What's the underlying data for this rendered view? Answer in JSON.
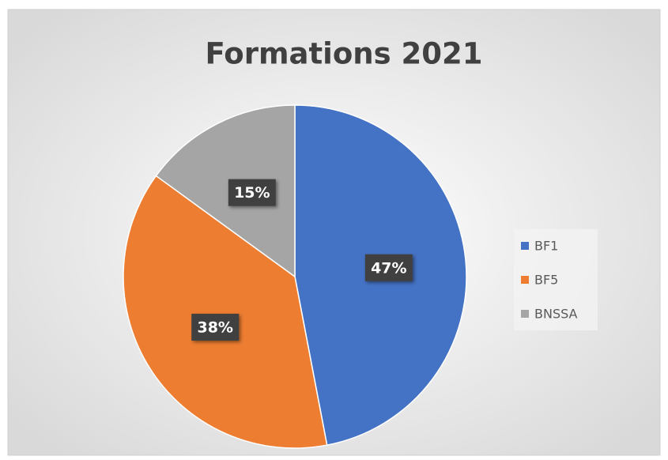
{
  "chart_data": {
    "type": "pie",
    "title": "Formations 2021",
    "categories": [
      "BF1",
      "BF5",
      "BNSSA"
    ],
    "values": [
      47,
      38,
      15
    ],
    "value_labels": [
      "47%",
      "38%",
      "15%"
    ],
    "colors": [
      "#4472c4",
      "#ed7d31",
      "#a5a5a5"
    ],
    "legend": "right"
  }
}
